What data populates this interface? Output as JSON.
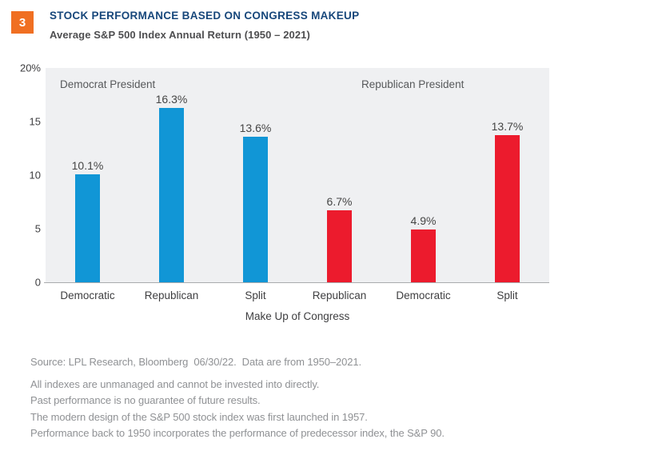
{
  "header": {
    "badge": "3",
    "title": "STOCK PERFORMANCE BASED ON CONGRESS MAKEUP",
    "subtitle": "Average S&P 500 Index Annual Return (1950 – 2021)"
  },
  "chart_data": {
    "type": "bar",
    "title": "STOCK PERFORMANCE BASED ON CONGRESS MAKEUP",
    "subtitle": "Average S&P 500 Index Annual Return (1950 – 2021)",
    "categories": [
      "Democratic",
      "Republican",
      "Split",
      "Republican",
      "Democratic",
      "Split"
    ],
    "values": [
      10.1,
      16.3,
      13.6,
      6.7,
      4.9,
      13.7
    ],
    "value_labels": [
      "10.1%",
      "16.3%",
      "13.6%",
      "6.7%",
      "4.9%",
      "13.7%"
    ],
    "bar_colors": [
      "#1196D6",
      "#1196D6",
      "#1196D6",
      "#EC1B2D",
      "#EC1B2D",
      "#EC1B2D"
    ],
    "groups": [
      {
        "label": "Democrat President",
        "color": "#1196D6",
        "categories": [
          "Democratic",
          "Republican",
          "Split"
        ],
        "values": [
          10.1,
          16.3,
          13.6
        ]
      },
      {
        "label": "Republican President",
        "color": "#EC1B2D",
        "categories": [
          "Republican",
          "Democratic",
          "Split"
        ],
        "values": [
          6.7,
          4.9,
          13.7
        ]
      }
    ],
    "xlabel": "Make Up of Congress",
    "ylabel": "",
    "ylim": [
      0,
      20
    ],
    "yticks": [
      "20%",
      "15",
      "10",
      "5",
      "0"
    ],
    "grid": false,
    "legend": "none",
    "plot_background": "#EFF0F2"
  },
  "footer": {
    "source": "Source: LPL Research, Bloomberg  06/30/22.  Data are from 1950–2021.",
    "notes": [
      "All indexes are unmanaged and cannot be invested into directly.",
      "Past performance is no guarantee of future results.",
      "The modern design of the S&P 500 stock index was first launched in 1957.",
      "Performance back to 1950 incorporates the performance of predecessor index, the S&P 90."
    ]
  },
  "colors": {
    "democrat_bar": "#1196D6",
    "republican_bar": "#EC1B2D",
    "badge": "#F06F22",
    "title_text": "#17477B",
    "plot_background": "#EFF0F2",
    "axis_line": "#A9ABAD"
  }
}
